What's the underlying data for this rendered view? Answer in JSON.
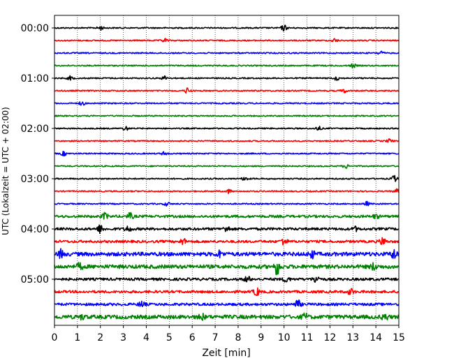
{
  "chart_data": {
    "type": "line",
    "subtype": "helicorder",
    "xlabel": "Zeit  [min]",
    "ylabel": "UTC (Lokalzeit = UTC + 02:00)",
    "xlim": [
      0,
      15
    ],
    "xticks": [
      0,
      1,
      2,
      3,
      4,
      5,
      6,
      7,
      8,
      9,
      10,
      11,
      12,
      13,
      14,
      15
    ],
    "xtick_labels": [
      "0",
      "1",
      "2",
      "3",
      "4",
      "5",
      "6",
      "7",
      "8",
      "9",
      "10",
      "11",
      "12",
      "13",
      "14",
      "15"
    ],
    "ytick_labels": [
      "00:00",
      "01:00",
      "02:00",
      "03:00",
      "04:00",
      "05:00"
    ],
    "ytick_rows": [
      0,
      4,
      8,
      12,
      16,
      20
    ],
    "grid": {
      "vertical": true,
      "style": "dotted"
    },
    "trace_colors": [
      "#000000",
      "#ff0000",
      "#0000ff",
      "#008000"
    ],
    "traces": [
      {
        "start": "00:00",
        "color": "#000000",
        "level": 1,
        "events": [
          {
            "t": 2.0,
            "a": 2
          },
          {
            "t": 10.0,
            "a": 3
          }
        ]
      },
      {
        "start": "00:15",
        "color": "#ff0000",
        "level": 1,
        "events": [
          {
            "t": 4.8,
            "a": 2
          },
          {
            "t": 12.2,
            "a": 2
          }
        ]
      },
      {
        "start": "00:30",
        "color": "#0000ff",
        "level": 1,
        "events": [
          {
            "t": 14.2,
            "a": 2
          }
        ]
      },
      {
        "start": "00:45",
        "color": "#008000",
        "level": 1,
        "events": [
          {
            "t": 13.0,
            "a": 2
          }
        ]
      },
      {
        "start": "01:00",
        "color": "#000000",
        "level": 1,
        "events": [
          {
            "t": 0.7,
            "a": 2
          },
          {
            "t": 4.8,
            "a": 2
          },
          {
            "t": 12.3,
            "a": 2
          }
        ]
      },
      {
        "start": "01:15",
        "color": "#ff0000",
        "level": 1,
        "events": [
          {
            "t": 5.8,
            "a": 3
          },
          {
            "t": 12.6,
            "a": 2
          }
        ]
      },
      {
        "start": "01:30",
        "color": "#0000ff",
        "level": 1,
        "events": [
          {
            "t": 1.2,
            "a": 2
          }
        ]
      },
      {
        "start": "01:45",
        "color": "#008000",
        "level": 1,
        "events": []
      },
      {
        "start": "02:00",
        "color": "#000000",
        "level": 1,
        "events": [
          {
            "t": 3.1,
            "a": 2
          },
          {
            "t": 11.5,
            "a": 2
          }
        ]
      },
      {
        "start": "02:15",
        "color": "#ff0000",
        "level": 1,
        "events": [
          {
            "t": 14.6,
            "a": 2
          }
        ]
      },
      {
        "start": "02:30",
        "color": "#0000ff",
        "level": 1,
        "events": [
          {
            "t": 0.4,
            "a": 2
          },
          {
            "t": 4.8,
            "a": 2
          }
        ]
      },
      {
        "start": "02:45",
        "color": "#008000",
        "level": 1,
        "events": [
          {
            "t": 12.7,
            "a": 2
          }
        ]
      },
      {
        "start": "03:00",
        "color": "#000000",
        "level": 1,
        "events": [
          {
            "t": 8.3,
            "a": 2
          },
          {
            "t": 14.8,
            "a": 3
          }
        ]
      },
      {
        "start": "03:15",
        "color": "#ff0000",
        "level": 1,
        "events": [
          {
            "t": 7.6,
            "a": 2
          },
          {
            "t": 14.9,
            "a": 2
          }
        ]
      },
      {
        "start": "03:30",
        "color": "#0000ff",
        "level": 1,
        "events": [
          {
            "t": 4.9,
            "a": 2
          },
          {
            "t": 13.6,
            "a": 2
          }
        ]
      },
      {
        "start": "03:45",
        "color": "#008000",
        "level": 2,
        "events": [
          {
            "t": 2.2,
            "a": 3
          },
          {
            "t": 3.3,
            "a": 3
          },
          {
            "t": 14.0,
            "a": 2
          }
        ]
      },
      {
        "start": "04:00",
        "color": "#000000",
        "level": 2,
        "events": [
          {
            "t": 2.0,
            "a": 4
          },
          {
            "t": 3.2,
            "a": 3
          },
          {
            "t": 7.5,
            "a": 3
          },
          {
            "t": 13.1,
            "a": 2
          }
        ]
      },
      {
        "start": "04:15",
        "color": "#ff0000",
        "level": 2,
        "events": [
          {
            "t": 5.6,
            "a": 3
          },
          {
            "t": 10.0,
            "a": 4
          },
          {
            "t": 14.3,
            "a": 4
          }
        ]
      },
      {
        "start": "04:30",
        "color": "#0000ff",
        "level": 3,
        "events": [
          {
            "t": 0.3,
            "a": 4
          },
          {
            "t": 7.2,
            "a": 3
          },
          {
            "t": 11.2,
            "a": 4
          },
          {
            "t": 14.8,
            "a": 5
          }
        ]
      },
      {
        "start": "04:45",
        "color": "#008000",
        "level": 3,
        "events": [
          {
            "t": 1.1,
            "a": 3
          },
          {
            "t": 9.7,
            "a": 8
          },
          {
            "t": 13.9,
            "a": 3
          }
        ]
      },
      {
        "start": "05:00",
        "color": "#000000",
        "level": 2,
        "events": [
          {
            "t": 8.4,
            "a": 3
          },
          {
            "t": 10.1,
            "a": 3
          },
          {
            "t": 11.4,
            "a": 4
          }
        ]
      },
      {
        "start": "05:15",
        "color": "#ff0000",
        "level": 2,
        "events": [
          {
            "t": 8.8,
            "a": 4
          },
          {
            "t": 12.9,
            "a": 3
          }
        ]
      },
      {
        "start": "05:30",
        "color": "#0000ff",
        "level": 2,
        "events": [
          {
            "t": 3.8,
            "a": 3
          },
          {
            "t": 10.6,
            "a": 4
          }
        ]
      },
      {
        "start": "05:45",
        "color": "#008000",
        "level": 3,
        "events": [
          {
            "t": 1.2,
            "a": 2
          },
          {
            "t": 6.4,
            "a": 3
          },
          {
            "t": 10.9,
            "a": 3
          },
          {
            "t": 14.4,
            "a": 3
          }
        ]
      }
    ]
  }
}
